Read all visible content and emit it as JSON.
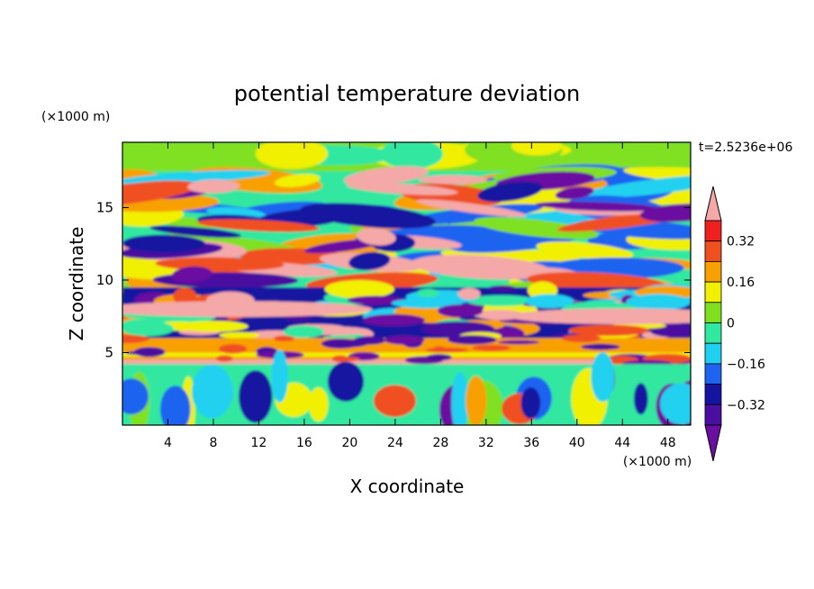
{
  "chart_data": {
    "type": "heatmap",
    "title": "potential temperature deviation",
    "xlabel": "X coordinate",
    "ylabel": "Z coordinate",
    "x_unit": "(×1000 m)",
    "y_unit": "(×1000 m)",
    "time_label": "t=2.5236e+06",
    "xlim": [
      0,
      50
    ],
    "ylim": [
      0,
      19.5
    ],
    "x_ticks": [
      4,
      8,
      12,
      16,
      20,
      24,
      28,
      32,
      36,
      40,
      44,
      48
    ],
    "y_ticks": [
      5,
      10,
      15
    ],
    "colorbar": {
      "levels": [
        -0.4,
        -0.32,
        -0.24,
        -0.16,
        -0.08,
        0,
        0.08,
        0.16,
        0.24,
        0.32,
        0.4
      ],
      "tick_labels": [
        "0.32",
        "0.16",
        "0",
        "−0.16",
        "−0.32"
      ],
      "tick_values": [
        0.32,
        0.16,
        0,
        -0.16,
        -0.32
      ],
      "colors": [
        "#6a0fa0",
        "#4a0fa0",
        "#1414a0",
        "#1e64f0",
        "#20d0f0",
        "#30e8a0",
        "#80e020",
        "#f0f000",
        "#f8a000",
        "#f05020",
        "#f02020",
        "#f4a8a8"
      ]
    },
    "bands": [
      {
        "z": [
          0,
          4.2
        ],
        "pattern": "vertical-cells"
      },
      {
        "z": [
          4.2,
          6.0
        ],
        "pattern": "warm-layer"
      },
      {
        "z": [
          6.0,
          9.5
        ],
        "pattern": "turbulent"
      },
      {
        "z": [
          9.5,
          17.5
        ],
        "pattern": "wave-lenses"
      },
      {
        "z": [
          17.5,
          19.5
        ],
        "pattern": "smooth-near-zero"
      }
    ]
  }
}
